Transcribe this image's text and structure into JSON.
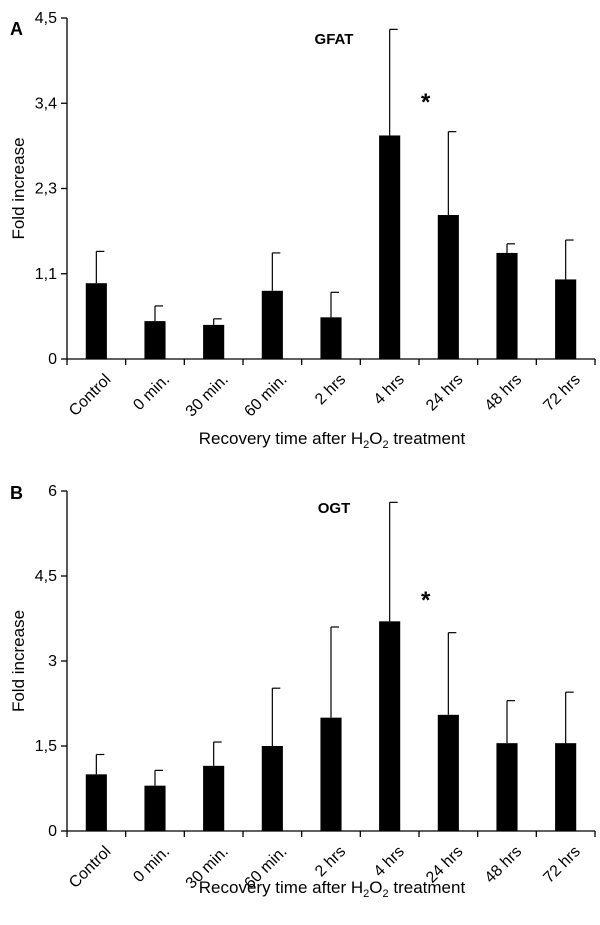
{
  "chart_data": [
    {
      "type": "bar",
      "panel_label": "A",
      "title": "GFAT",
      "ylabel": "Fold increase",
      "xlabel_parts": [
        "Recovery time after H",
        "2",
        "O",
        "2",
        " treatment"
      ],
      "ylim": [
        0,
        4.5
      ],
      "yticks": [
        "0",
        "1,1",
        "2,3",
        "3,4",
        "4,5"
      ],
      "ytick_values": [
        0,
        1.125,
        2.25,
        3.375,
        4.5
      ],
      "categories": [
        "Control",
        "0 min.",
        "30 min.",
        "60 min.",
        "2 hrs",
        "4 hrs",
        "24 hrs",
        "48 hrs",
        "72 hrs"
      ],
      "values": [
        1.0,
        0.5,
        0.45,
        0.9,
        0.55,
        2.95,
        1.9,
        1.4,
        1.05
      ],
      "errors": [
        0.42,
        0.2,
        0.08,
        0.5,
        0.33,
        1.4,
        1.1,
        0.12,
        0.52
      ],
      "significance": [
        {
          "index": 5,
          "label": "*"
        }
      ],
      "color": "#000000"
    },
    {
      "type": "bar",
      "panel_label": "B",
      "title": "OGT",
      "ylabel": "Fold increase",
      "xlabel_parts": [
        "Recovery time after H",
        "2",
        "O",
        "2",
        " treatment"
      ],
      "ylim": [
        0,
        6
      ],
      "yticks": [
        "0",
        "1,5",
        "3",
        "4,5",
        "6"
      ],
      "ytick_values": [
        0,
        1.5,
        3,
        4.5,
        6
      ],
      "categories": [
        "Control",
        "0 min.",
        "30 min.",
        "60 min.",
        "2 hrs",
        "4 hrs",
        "24 hrs",
        "48 hrs",
        "72 hrs"
      ],
      "values": [
        1.0,
        0.8,
        1.15,
        1.5,
        2.0,
        3.7,
        2.05,
        1.55,
        1.55
      ],
      "errors": [
        0.35,
        0.27,
        0.42,
        1.02,
        1.6,
        2.1,
        1.45,
        0.75,
        0.9
      ],
      "significance": [
        {
          "index": 5,
          "label": "*"
        }
      ],
      "color": "#000000"
    }
  ]
}
